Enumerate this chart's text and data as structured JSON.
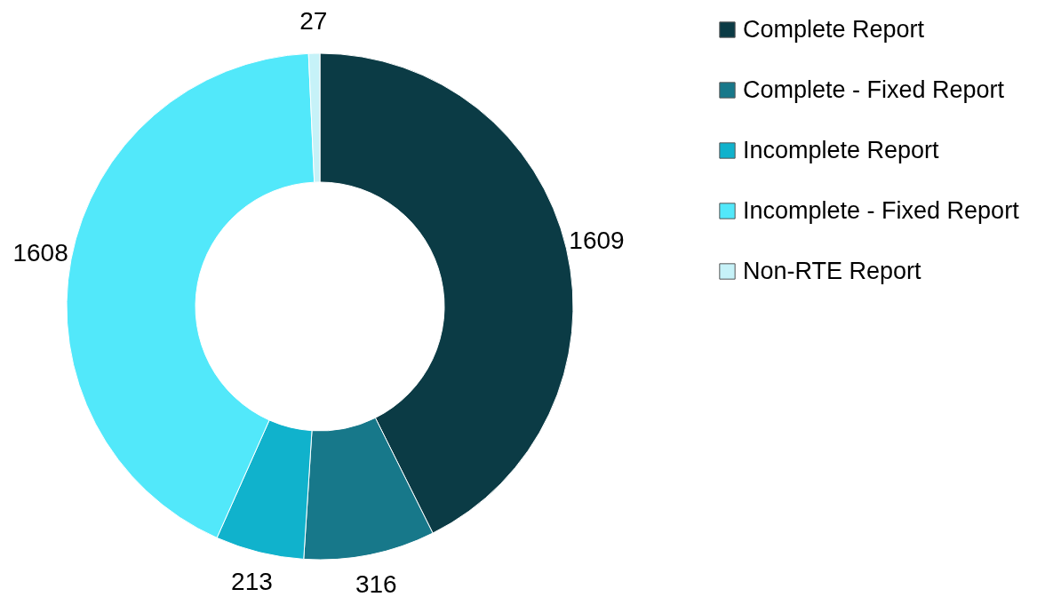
{
  "chart_data": {
    "type": "donut",
    "categories": [
      "Complete Report",
      "Complete - Fixed Report",
      "Incomplete Report",
      "Incomplete - Fixed Report",
      "Non-RTE Report"
    ],
    "values": [
      1609,
      316,
      213,
      1608,
      27
    ],
    "colors": [
      "#0b3b45",
      "#17788a",
      "#10b2cc",
      "#52e8fa",
      "#c6f2f8"
    ],
    "data_labels": true,
    "legend": "top right"
  }
}
